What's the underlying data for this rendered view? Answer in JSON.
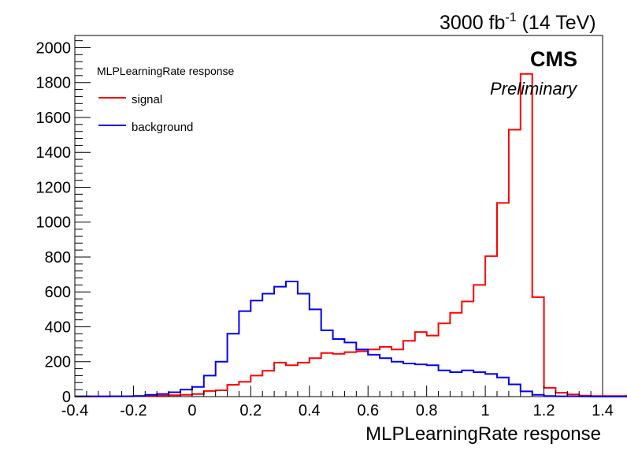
{
  "header": {
    "lumi_value": "3000 fb",
    "lumi_exp": "-1",
    "lumi_energy": " (14 TeV)"
  },
  "labels": {
    "experiment": "CMS",
    "status": "Preliminary"
  },
  "colors": {
    "signal": "#ff0000",
    "background": "#0000ff",
    "axis": "#000000",
    "background_fill": "#ffffff"
  },
  "chart_data": {
    "type": "line",
    "style": "step-histogram",
    "title": "",
    "xlabel": "MLPLearningRate response",
    "ylabel": "",
    "xlim": [
      -0.4,
      1.4
    ],
    "ylim": [
      0,
      2070
    ],
    "bin_width": 0.04,
    "x_bin_edges_start": -0.4,
    "xticks": [
      "-0.4",
      "-0.2",
      "0",
      "0.2",
      "0.4",
      "0.6",
      "0.8",
      "1",
      "1.2",
      "1.4"
    ],
    "yticks": [
      "0",
      "200",
      "400",
      "600",
      "800",
      "1000",
      "1200",
      "1400",
      "1600",
      "1800",
      "2000"
    ],
    "legend": {
      "title": "MLPLearningRate response",
      "placement": "top-left",
      "entries": [
        "signal",
        "background"
      ]
    },
    "grid": false,
    "series": [
      {
        "name": "signal",
        "color": "#ff0000",
        "values": [
          0,
          0,
          0,
          2,
          2,
          3,
          5,
          5,
          8,
          10,
          15,
          32,
          36,
          68,
          85,
          120,
          148,
          195,
          180,
          195,
          220,
          250,
          245,
          255,
          260,
          270,
          285,
          270,
          320,
          370,
          350,
          420,
          480,
          545,
          640,
          805,
          1110,
          1530,
          1850,
          570,
          50,
          22,
          12,
          6,
          3,
          3,
          3,
          5,
          2,
          0
        ]
      },
      {
        "name": "background",
        "color": "#0000ff",
        "values": [
          2,
          2,
          2,
          2,
          2,
          3,
          10,
          15,
          25,
          40,
          55,
          120,
          200,
          360,
          490,
          550,
          590,
          630,
          660,
          590,
          500,
          380,
          330,
          310,
          270,
          240,
          220,
          200,
          190,
          185,
          180,
          150,
          140,
          150,
          140,
          130,
          110,
          70,
          30,
          10,
          3,
          2,
          2,
          1,
          0,
          0,
          0,
          0,
          0,
          0
        ]
      }
    ]
  }
}
